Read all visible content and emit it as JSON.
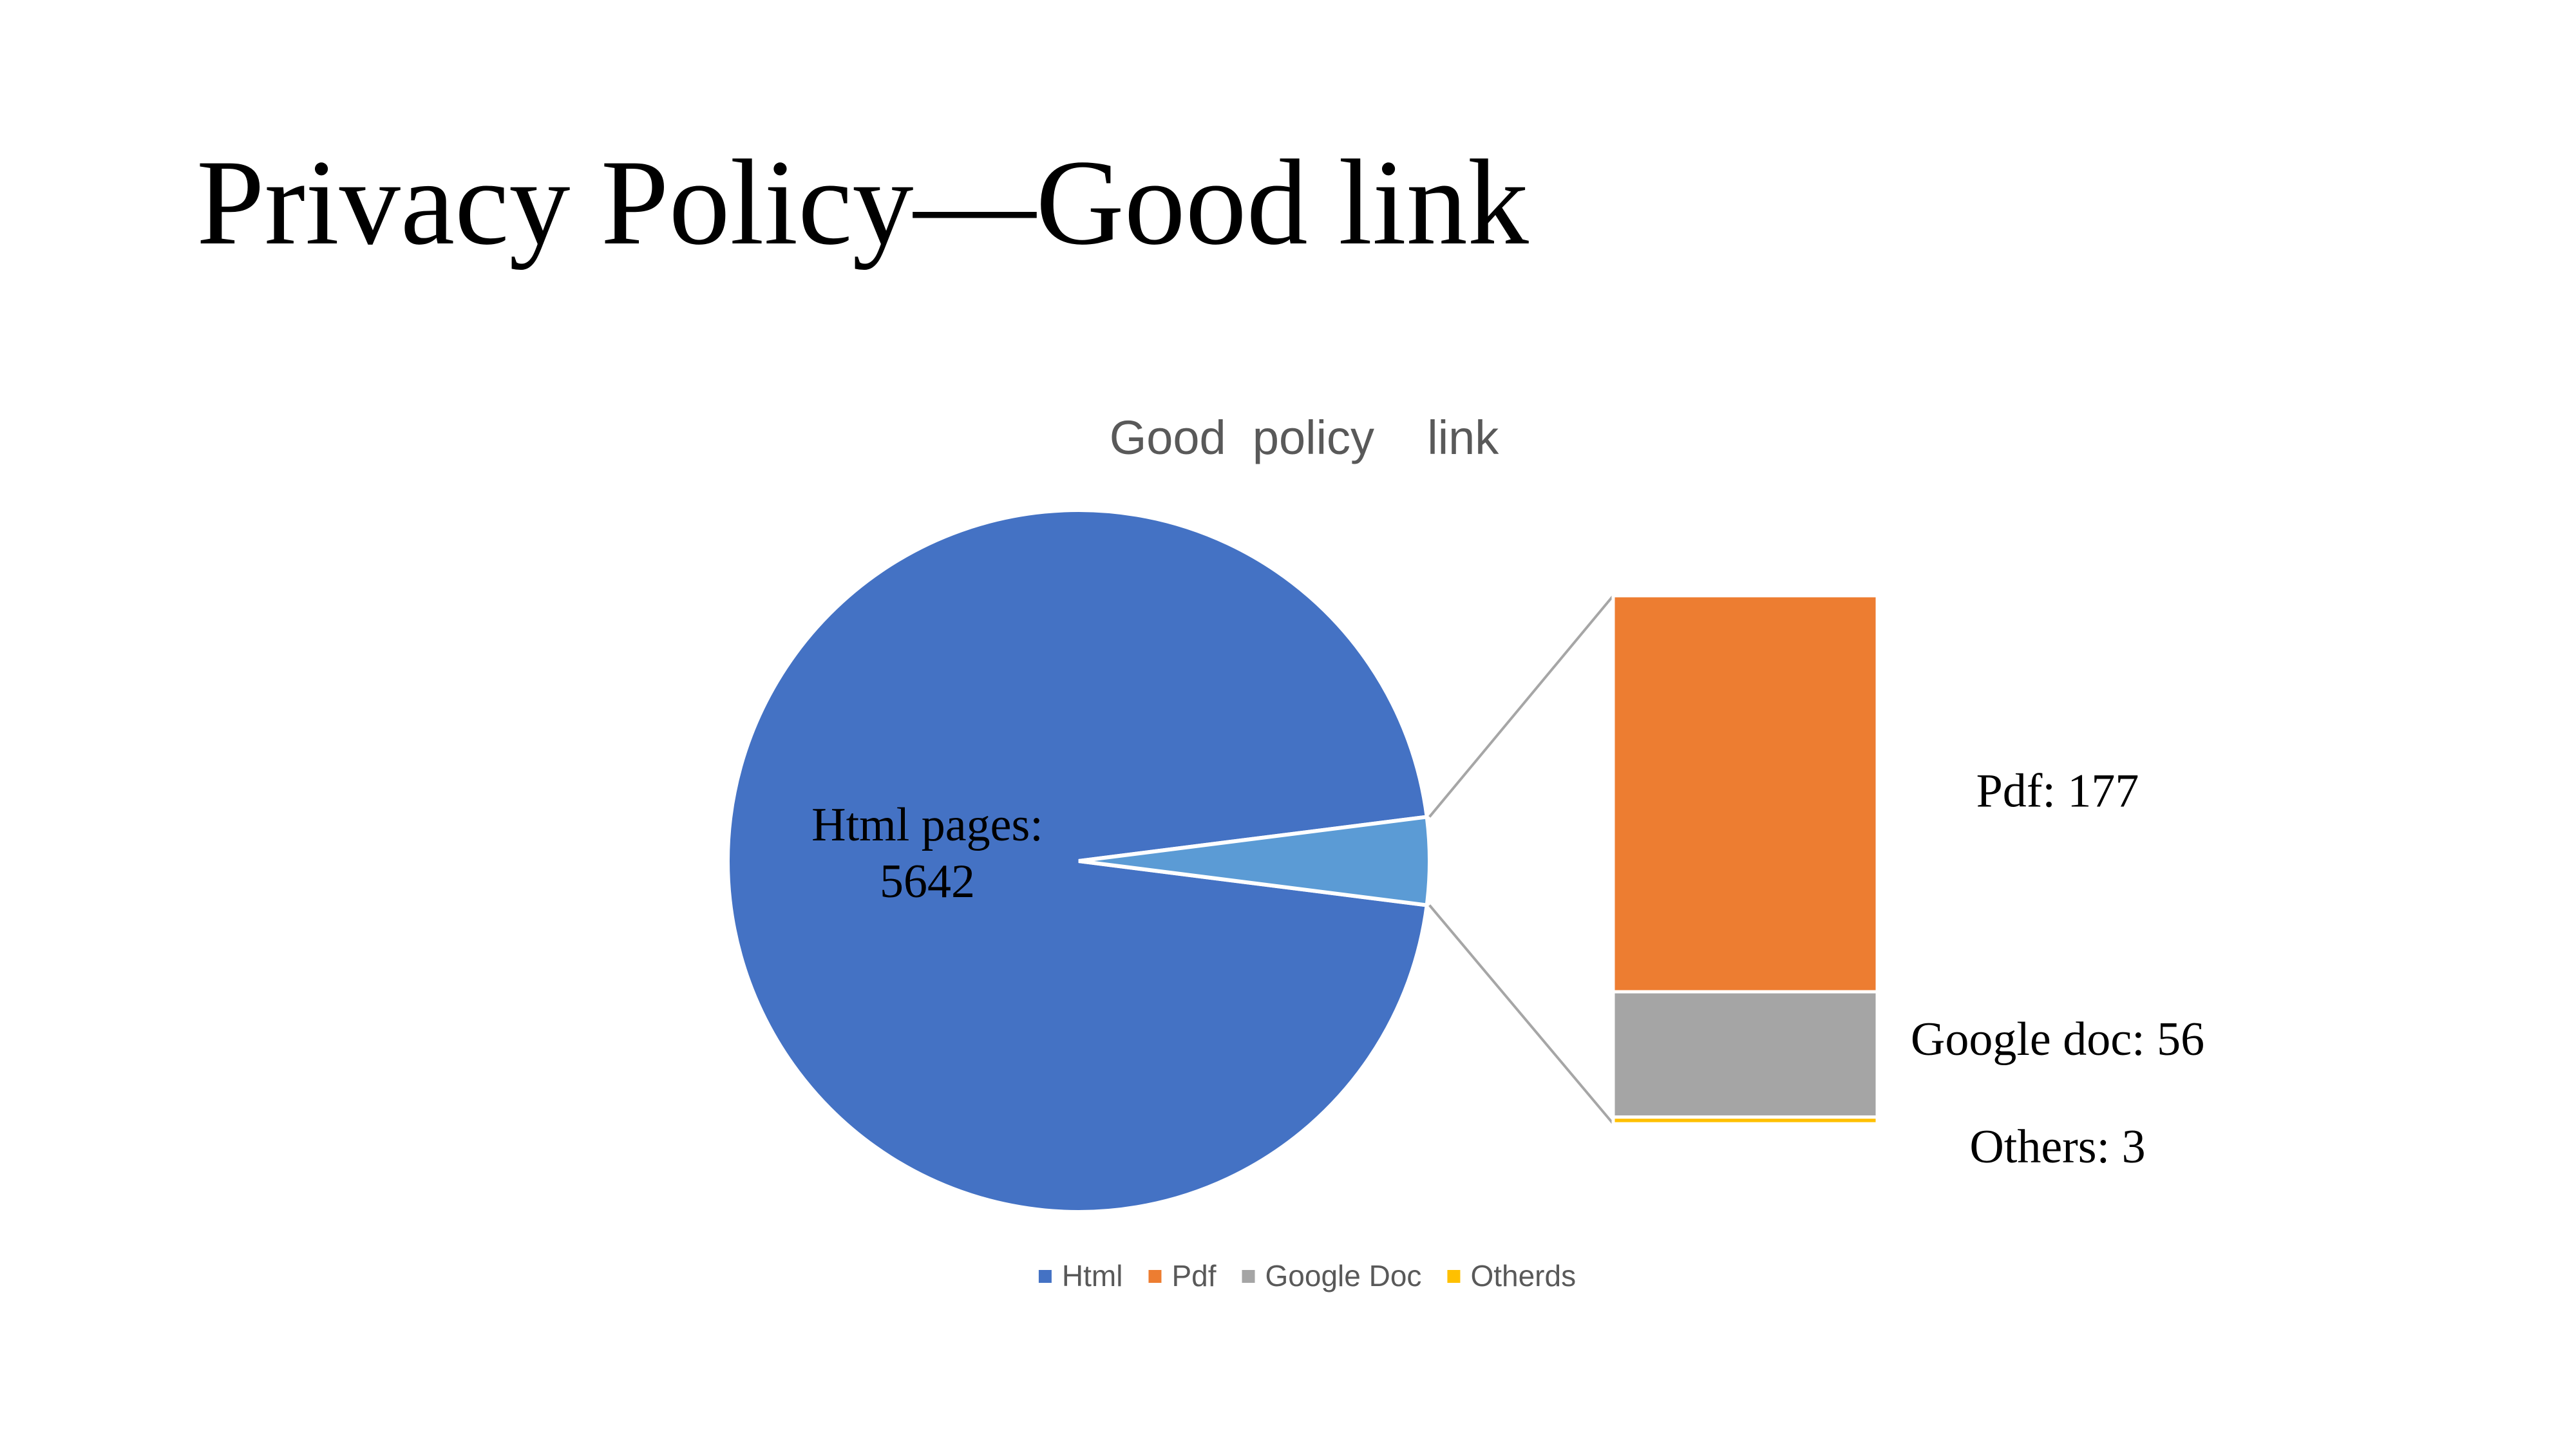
{
  "slide": {
    "title": "Privacy Policy—Good link"
  },
  "chart_data": {
    "type": "pie",
    "subtype": "bar-of-pie",
    "title": "Good  policy    link",
    "slices": [
      {
        "name": "Html",
        "value": 5642,
        "color": "#4472C4",
        "label_lines": [
          "Html pages:",
          "5642"
        ]
      },
      {
        "name": "Pdf",
        "value": 177,
        "color": "#ED7D31",
        "label_lines": [
          "Pdf: 177"
        ]
      },
      {
        "name": "Google Doc",
        "value": 56,
        "color": "#A5A5A5",
        "label_lines": [
          "Google doc: 56"
        ]
      },
      {
        "name": "Otherds",
        "value": 3,
        "color": "#FFC000",
        "label_lines": [
          "Others: 3"
        ]
      }
    ],
    "secondary_group": {
      "color": "#5B9BD5",
      "members": [
        "Pdf",
        "Google Doc",
        "Otherds"
      ]
    },
    "legend": {
      "position": "bottom",
      "entries": [
        "Html",
        "Pdf",
        "Google Doc",
        "Otherds"
      ]
    }
  }
}
